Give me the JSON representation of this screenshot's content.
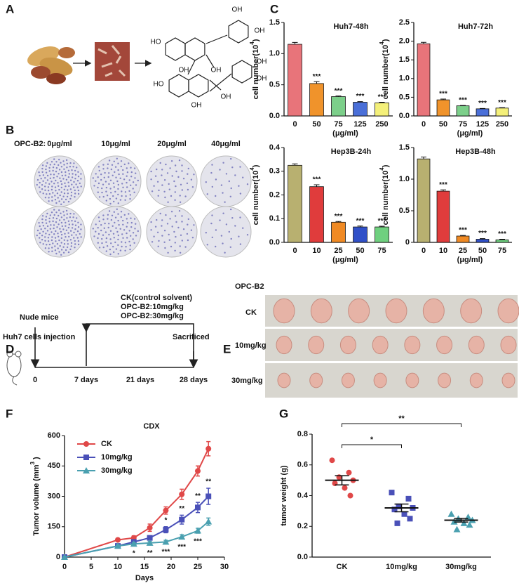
{
  "panel_labels": [
    "A",
    "B",
    "C",
    "D",
    "E",
    "F",
    "G"
  ],
  "A": {
    "structure_labels": [
      "OH",
      "OH",
      "HO",
      "OH",
      "OH",
      "OH",
      "OH",
      "HO",
      "OH",
      "OH"
    ]
  },
  "B": {
    "header": "OPC-B2:",
    "doses": [
      "0μg/ml",
      "10μg/ml",
      "20μg/ml",
      "40μg/ml"
    ]
  },
  "D": {
    "start": "Nude mice",
    "injection": "Huh7 cells injection",
    "treatments": [
      "CK(control solvent)",
      "OPC-B2:10mg/kg",
      "OPC-B2:30mg/kg"
    ],
    "end": "Sacrificed",
    "timepoints": [
      "0",
      "7 days",
      "21 days",
      "28 days"
    ]
  },
  "E": {
    "header": "OPC-B2",
    "groups": [
      "CK",
      "10mg/kg",
      "30mg/kg"
    ]
  },
  "chart_data": [
    {
      "type": "bar",
      "title": "Huh7-48h",
      "categories": [
        "0",
        "50",
        "75",
        "125",
        "250"
      ],
      "values": [
        1.15,
        0.52,
        0.31,
        0.22,
        0.21
      ],
      "errors": [
        0.03,
        0.03,
        0.01,
        0.01,
        0.01
      ],
      "colors": [
        "#e8747a",
        "#f0932b",
        "#7ccf8a",
        "#4a6fd8",
        "#f4f07a"
      ],
      "significance": [
        null,
        "***",
        "***",
        "***",
        "***"
      ],
      "ylim": [
        0,
        1.5
      ],
      "yticks": [
        {
          "value": 0,
          "label": "0.0"
        },
        0.5,
        {
          "value": 1,
          "label": "1.0"
        },
        1.5
      ],
      "x_label": "(μg/ml)",
      "y_label": [
        "cell number(10",
        "4",
        ")"
      ]
    },
    {
      "type": "bar",
      "title": "Huh7-72h",
      "categories": [
        "0",
        "50",
        "75",
        "125",
        "250"
      ],
      "values": [
        1.93,
        0.43,
        0.27,
        0.19,
        0.21
      ],
      "errors": [
        0.04,
        0.02,
        0.01,
        0.01,
        0.01
      ],
      "colors": [
        "#e8747a",
        "#f0932b",
        "#7ccf8a",
        "#4a6fd8",
        "#f4f07a"
      ],
      "significance": [
        null,
        "***",
        "***",
        "***",
        "***"
      ],
      "ylim": [
        0,
        2.5
      ],
      "yticks": [
        {
          "value": 0,
          "label": "0.0"
        },
        0.5,
        {
          "value": 1,
          "label": "1.0"
        },
        1.5,
        {
          "value": 2,
          "label": "2.0"
        },
        2.5
      ],
      "x_label": "(μg/ml)",
      "y_label": [
        "cell number(10",
        "4",
        ")"
      ]
    },
    {
      "type": "bar",
      "title": "Hep3B-24h",
      "categories": [
        "0",
        "10",
        "25",
        "50",
        "75"
      ],
      "values": [
        0.325,
        0.235,
        0.085,
        0.065,
        0.065
      ],
      "errors": [
        0.006,
        0.008,
        0.003,
        0.004,
        0.003
      ],
      "colors": [
        "#b8b070",
        "#e03c3c",
        "#f08a24",
        "#3050c8",
        "#6fd07f"
      ],
      "significance": [
        null,
        "***",
        "***",
        "***",
        "***"
      ],
      "ylim": [
        0,
        0.4
      ],
      "yticks": [
        {
          "value": 0,
          "label": "0.0"
        },
        0.1,
        0.2,
        0.3,
        0.4
      ],
      "x_label": "(μg/ml)",
      "y_label": [
        "cell number(10",
        "4",
        ")"
      ]
    },
    {
      "type": "bar",
      "title": "Hep3B-48h",
      "categories": [
        "0",
        "10",
        "25",
        "50",
        "75"
      ],
      "values": [
        1.32,
        0.81,
        0.1,
        0.05,
        0.04
      ],
      "errors": [
        0.03,
        0.02,
        0.01,
        0.01,
        0.01
      ],
      "colors": [
        "#b8b070",
        "#e03c3c",
        "#f08a24",
        "#3050c8",
        "#6fd07f"
      ],
      "significance": [
        null,
        "***",
        "***",
        "***",
        "***"
      ],
      "ylim": [
        0,
        1.5
      ],
      "yticks": [
        0,
        0.5,
        {
          "value": 1,
          "label": "1.0"
        },
        1.5
      ],
      "x_label": "(μg/ml)",
      "y_label": [
        "cell number(10",
        "4",
        ")"
      ]
    },
    {
      "type": "line",
      "title": "CDX",
      "x": [
        0,
        10,
        13,
        16,
        19,
        22,
        25,
        27
      ],
      "series": [
        {
          "name": "CK",
          "color": "#e04848",
          "marker": "circle",
          "values": [
            0,
            85,
            95,
            145,
            230,
            310,
            425,
            535
          ],
          "errors": [
            0,
            6,
            10,
            18,
            18,
            25,
            25,
            35
          ],
          "significance": [
            null,
            null,
            null,
            null,
            null,
            null,
            null,
            null
          ]
        },
        {
          "name": "10mg/kg",
          "color": "#4a50b8",
          "marker": "square",
          "values": [
            0,
            55,
            75,
            95,
            135,
            185,
            245,
            300
          ],
          "errors": [
            0,
            5,
            8,
            10,
            15,
            22,
            25,
            40
          ],
          "significance": [
            null,
            null,
            null,
            null,
            "*",
            "**",
            "**",
            "**"
          ]
        },
        {
          "name": "30mg/kg",
          "color": "#4aa0b0",
          "marker": "triangle",
          "values": [
            0,
            55,
            65,
            70,
            75,
            100,
            130,
            175
          ],
          "errors": [
            0,
            5,
            6,
            8,
            8,
            10,
            12,
            18
          ],
          "significance": [
            null,
            null,
            "*",
            "**",
            "***",
            "***",
            "***",
            null
          ]
        }
      ],
      "xlim": [
        0,
        30
      ],
      "xticks": [
        0,
        5,
        10,
        15,
        20,
        25,
        30
      ],
      "ylim": [
        0,
        600
      ],
      "yticks": [
        0,
        150,
        300,
        450,
        600
      ],
      "x_label": "Days",
      "y_label": [
        "Tumor volume (mm",
        "3",
        " )"
      ],
      "legend": "top-left"
    },
    {
      "type": "scatter",
      "categories": [
        "CK",
        "10mg/kg",
        "30mg/kg"
      ],
      "series": [
        {
          "name": "CK",
          "color": "#e04848",
          "marker": "circle",
          "values": [
            0.63,
            0.55,
            0.52,
            0.5,
            0.48,
            0.45,
            0.4
          ]
        },
        {
          "name": "10mg/kg",
          "color": "#4a50b8",
          "marker": "square",
          "values": [
            0.42,
            0.38,
            0.33,
            0.32,
            0.31,
            0.28,
            0.25,
            0.22
          ]
        },
        {
          "name": "30mg/kg",
          "color": "#4aa0b0",
          "marker": "triangle",
          "values": [
            0.28,
            0.26,
            0.25,
            0.24,
            0.23,
            0.22,
            0.21,
            0.18
          ]
        }
      ],
      "means": [
        0.5,
        0.32,
        0.24
      ],
      "sems": [
        0.03,
        0.025,
        0.012
      ],
      "significance": [
        null,
        "*",
        "**"
      ],
      "ylim": [
        0,
        0.8
      ],
      "yticks": [
        {
          "value": 0,
          "label": "0.0"
        },
        0.2,
        0.4,
        0.6,
        0.8
      ],
      "y_label": [
        "tumor weight (g)"
      ]
    }
  ]
}
